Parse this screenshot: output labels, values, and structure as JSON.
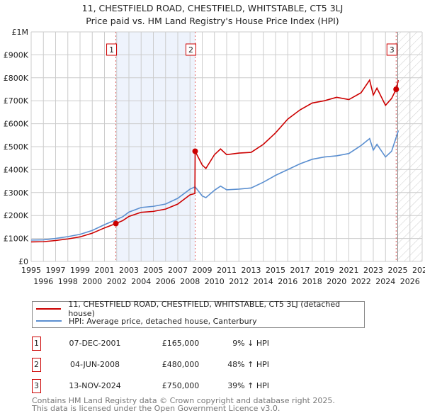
{
  "header": {
    "title": "11, CHESTFIELD ROAD, CHESTFIELD, WHITSTABLE, CT5 3LJ",
    "subtitle": "Price paid vs. HM Land Registry's House Price Index (HPI)"
  },
  "chart_data": {
    "type": "line",
    "title": "Price paid vs. HM Land Registry's House Price Index (HPI)",
    "xlim": [
      1995,
      2027
    ],
    "ylim": [
      0,
      1000000
    ],
    "x_ticks": [
      "1995",
      "1996",
      "1997",
      "1998",
      "1999",
      "2000",
      "2001",
      "2002",
      "2003",
      "2004",
      "2005",
      "2006",
      "2007",
      "2008",
      "2009",
      "2010",
      "2011",
      "2012",
      "2013",
      "2014",
      "2015",
      "2016",
      "2017",
      "2018",
      "2019",
      "2020",
      "2021",
      "2022",
      "2023",
      "2024",
      "2025",
      "2026",
      "2027"
    ],
    "y_ticks": [
      {
        "v": 0,
        "label": "£0"
      },
      {
        "v": 100000,
        "label": "£100K"
      },
      {
        "v": 200000,
        "label": "£200K"
      },
      {
        "v": 300000,
        "label": "£300K"
      },
      {
        "v": 400000,
        "label": "£400K"
      },
      {
        "v": 500000,
        "label": "£500K"
      },
      {
        "v": 600000,
        "label": "£600K"
      },
      {
        "v": 700000,
        "label": "£700K"
      },
      {
        "v": 800000,
        "label": "£800K"
      },
      {
        "v": 900000,
        "label": "£900K"
      },
      {
        "v": 1000000,
        "label": "£1M"
      }
    ],
    "series": [
      {
        "name": "11, CHESTFIELD ROAD, CHESTFIELD, WHITSTABLE, CT5 3LJ (detached house)",
        "color": "#cc0000",
        "x": [
          1995,
          1996,
          1997,
          1998,
          1999,
          2000,
          2001,
          2001.93,
          2002.5,
          2003,
          2004,
          2005,
          2006,
          2007,
          2008,
          2008.4,
          2008.42,
          2009,
          2009.3,
          2010,
          2010.5,
          2011,
          2012,
          2013,
          2014,
          2015,
          2016,
          2017,
          2018,
          2019,
          2020,
          2021,
          2022,
          2022.7,
          2023,
          2023.3,
          2024,
          2024.5,
          2024.87,
          2025.05
        ],
        "y": [
          85000,
          86000,
          91000,
          98000,
          107000,
          123000,
          146000,
          165000,
          178000,
          196000,
          214000,
          218000,
          228000,
          250000,
          290000,
          296000,
          480000,
          420000,
          405000,
          465000,
          490000,
          465000,
          472000,
          475000,
          510000,
          560000,
          620000,
          660000,
          690000,
          700000,
          715000,
          705000,
          735000,
          790000,
          725000,
          755000,
          680000,
          710000,
          750000,
          790000
        ]
      },
      {
        "name": "HPI: Average price, detached house, Canterbury",
        "color": "#5b8fd0",
        "x": [
          1995,
          1996,
          1997,
          1998,
          1999,
          2000,
          2001,
          2001.93,
          2002.5,
          2003,
          2004,
          2005,
          2006,
          2007,
          2008,
          2008.42,
          2009,
          2009.3,
          2010,
          2010.5,
          2011,
          2012,
          2013,
          2014,
          2015,
          2016,
          2017,
          2018,
          2019,
          2020,
          2021,
          2022,
          2022.7,
          2023,
          2023.3,
          2024,
          2024.5,
          2024.87,
          2025.05
        ],
        "y": [
          93000,
          94000,
          100000,
          108000,
          118000,
          135000,
          160000,
          181000,
          195000,
          215000,
          235000,
          240000,
          250000,
          275000,
          315000,
          325000,
          285000,
          278000,
          310000,
          328000,
          312000,
          315000,
          320000,
          345000,
          375000,
          400000,
          425000,
          445000,
          455000,
          460000,
          470000,
          505000,
          535000,
          485000,
          510000,
          455000,
          480000,
          540000,
          570000
        ]
      }
    ],
    "sales": [
      {
        "label": "1",
        "x": 2001.93,
        "y": 165000
      },
      {
        "label": "2",
        "x": 2008.42,
        "y": 480000
      },
      {
        "label": "3",
        "x": 2024.87,
        "y": 750000
      }
    ],
    "shaded_range": [
      2001.93,
      2008.42
    ],
    "hatched_from": 2025.0,
    "legend_position": "bottom",
    "grid": true
  },
  "legend": {
    "items": [
      {
        "label": "11, CHESTFIELD ROAD, CHESTFIELD, WHITSTABLE, CT5 3LJ (detached house)",
        "color": "#cc0000"
      },
      {
        "label": "HPI: Average price, detached house, Canterbury",
        "color": "#5b8fd0"
      }
    ]
  },
  "transactions": [
    {
      "num": "1",
      "date": "07-DEC-2001",
      "price": "£165,000",
      "hpi": "9% ↓ HPI"
    },
    {
      "num": "2",
      "date": "04-JUN-2008",
      "price": "£480,000",
      "hpi": "48% ↑ HPI"
    },
    {
      "num": "3",
      "date": "13-NOV-2024",
      "price": "£750,000",
      "hpi": "39% ↑ HPI"
    }
  ],
  "footer": {
    "line1": "Contains HM Land Registry data © Crown copyright and database right 2025.",
    "line2": "This data is licensed under the Open Government Licence v3.0."
  }
}
